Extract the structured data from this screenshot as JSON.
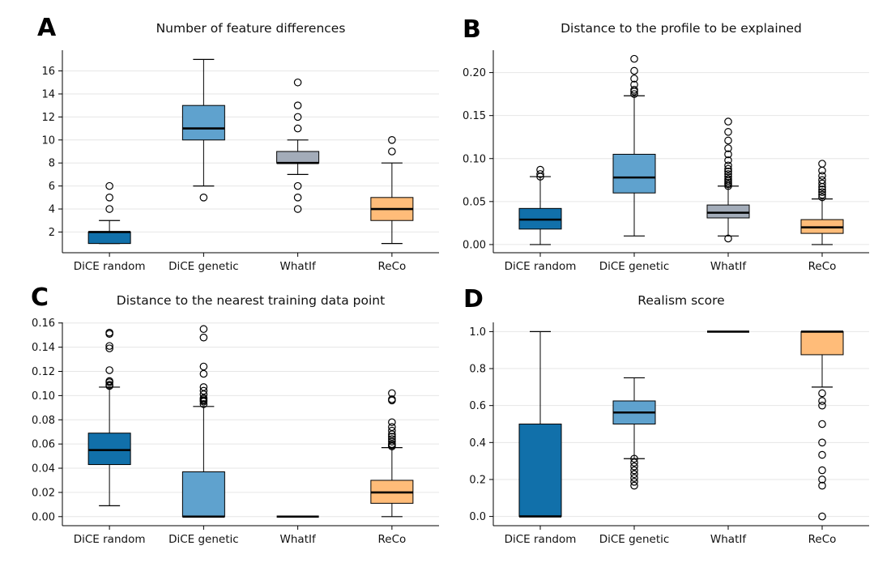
{
  "colors": {
    "DiCE random": "#1170aa",
    "DiCE genetic": "#5fa2ce",
    "WhatIf": "#a3acb9",
    "ReCo": "#ffbc79"
  },
  "chart_data": [
    {
      "letter": "A",
      "type": "box",
      "title": "Number of feature differences",
      "categories": [
        "DiCE random",
        "DiCE genetic",
        "WhatIf",
        "ReCo"
      ],
      "ylim": [
        0.2,
        17.8
      ],
      "yticks": [
        2,
        4,
        6,
        8,
        10,
        12,
        14,
        16
      ],
      "tick_format": "int",
      "grid": true,
      "boxes": [
        {
          "q1": 1,
          "median": 2,
          "q3": 2,
          "whislo": 1,
          "whishi": 3,
          "fliers": [
            4,
            5,
            6
          ]
        },
        {
          "q1": 10,
          "median": 11,
          "q3": 13,
          "whislo": 6,
          "whishi": 17,
          "fliers": [
            5
          ]
        },
        {
          "q1": 8,
          "median": 8,
          "q3": 9,
          "whislo": 7,
          "whishi": 10,
          "fliers": [
            4,
            5,
            6,
            11,
            12,
            13,
            15
          ]
        },
        {
          "q1": 3,
          "median": 4,
          "q3": 5,
          "whislo": 1,
          "whishi": 8,
          "fliers": [
            9,
            10
          ]
        }
      ]
    },
    {
      "letter": "B",
      "type": "box",
      "title": "Distance to the profile to be explained",
      "categories": [
        "DiCE random",
        "DiCE genetic",
        "WhatIf",
        "ReCo"
      ],
      "ylim": [
        -0.0095,
        0.226
      ],
      "yticks": [
        0.0,
        0.05,
        0.1,
        0.15,
        0.2
      ],
      "tick_format": "2",
      "grid": true,
      "boxes": [
        {
          "q1": 0.018,
          "median": 0.029,
          "q3": 0.042,
          "whislo": 0.0,
          "whishi": 0.079,
          "fliers": [
            0.079,
            0.082,
            0.087
          ]
        },
        {
          "q1": 0.06,
          "median": 0.078,
          "q3": 0.105,
          "whislo": 0.01,
          "whishi": 0.173,
          "fliers": [
            0.175,
            0.178,
            0.18,
            0.186,
            0.193,
            0.202,
            0.216
          ]
        },
        {
          "q1": 0.031,
          "median": 0.037,
          "q3": 0.046,
          "whislo": 0.01,
          "whishi": 0.068,
          "fliers": [
            0.007,
            0.068,
            0.07,
            0.072,
            0.074,
            0.076,
            0.079,
            0.082,
            0.085,
            0.088,
            0.092,
            0.098,
            0.105,
            0.112,
            0.121,
            0.131,
            0.143
          ]
        },
        {
          "q1": 0.013,
          "median": 0.02,
          "q3": 0.029,
          "whislo": 0.0,
          "whishi": 0.053,
          "fliers": [
            0.055,
            0.058,
            0.061,
            0.064,
            0.067,
            0.071,
            0.075,
            0.08,
            0.086,
            0.094
          ]
        }
      ]
    },
    {
      "letter": "C",
      "type": "box",
      "title": "Distance to the nearest training data point",
      "categories": [
        "DiCE random",
        "DiCE genetic",
        "WhatIf",
        "ReCo"
      ],
      "ylim": [
        -0.0075,
        0.1605
      ],
      "yticks": [
        0.0,
        0.02,
        0.04,
        0.06,
        0.08,
        0.1,
        0.12,
        0.14,
        0.16
      ],
      "tick_format": "2",
      "grid": true,
      "boxes": [
        {
          "q1": 0.043,
          "median": 0.055,
          "q3": 0.069,
          "whislo": 0.009,
          "whishi": 0.107,
          "fliers": [
            0.108,
            0.109,
            0.111,
            0.112,
            0.121,
            0.139,
            0.141,
            0.151,
            0.152
          ]
        },
        {
          "q1": 0.0,
          "median": 0.0,
          "q3": 0.037,
          "whislo": 0.0,
          "whishi": 0.091,
          "fliers": [
            0.093,
            0.095,
            0.096,
            0.097,
            0.098,
            0.101,
            0.104,
            0.107,
            0.118,
            0.124,
            0.148,
            0.155
          ]
        },
        {
          "q1": 0.0,
          "median": 0.0,
          "q3": 0.0,
          "whislo": 0.0,
          "whishi": 0.0,
          "fliers": []
        },
        {
          "q1": 0.011,
          "median": 0.02,
          "q3": 0.03,
          "whislo": 0.0,
          "whishi": 0.057,
          "fliers": [
            0.058,
            0.059,
            0.06,
            0.062,
            0.064,
            0.066,
            0.068,
            0.071,
            0.074,
            0.078,
            0.096,
            0.097,
            0.102
          ]
        }
      ]
    },
    {
      "letter": "D",
      "type": "box",
      "title": "Realism score",
      "categories": [
        "DiCE random",
        "DiCE genetic",
        "WhatIf",
        "ReCo"
      ],
      "ylim": [
        -0.05,
        1.05
      ],
      "yticks": [
        0.0,
        0.2,
        0.4,
        0.6,
        0.8,
        1.0
      ],
      "tick_format": "1",
      "grid": true,
      "boxes": [
        {
          "q1": 0.0,
          "median": 0.0,
          "q3": 0.5,
          "whislo": 0.0,
          "whishi": 1.0,
          "fliers": []
        },
        {
          "q1": 0.5,
          "median": 0.5625,
          "q3": 0.625,
          "whislo": 0.3125,
          "whishi": 0.75,
          "fliers": [
            0.1667,
            0.1875,
            0.2083,
            0.2292,
            0.25,
            0.2708,
            0.2917,
            0.3125
          ]
        },
        {
          "q1": 1.0,
          "median": 1.0,
          "q3": 1.0,
          "whislo": 1.0,
          "whishi": 1.0,
          "fliers": []
        },
        {
          "q1": 0.875,
          "median": 1.0,
          "q3": 1.0,
          "whislo": 0.7,
          "whishi": 1.0,
          "fliers": [
            0.0,
            0.1667,
            0.2,
            0.25,
            0.3333,
            0.4,
            0.5,
            0.6,
            0.625,
            0.6667
          ]
        }
      ]
    }
  ]
}
